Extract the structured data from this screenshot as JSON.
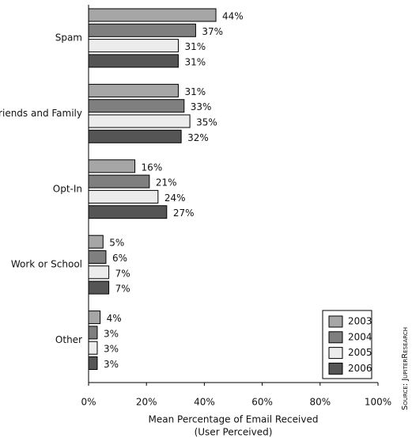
{
  "chart_data": {
    "type": "bar",
    "orientation": "horizontal",
    "categories": [
      "Spam",
      "Friends and Family",
      "Opt-In",
      "Work or School",
      "Other"
    ],
    "series": [
      {
        "name": "2003",
        "color": "#a6a6a6",
        "values": [
          44,
          31,
          16,
          5,
          4
        ],
        "value_labels": [
          "44%",
          "31%",
          "16%",
          "5%",
          "4%"
        ]
      },
      {
        "name": "2004",
        "color": "#7f7f7f",
        "values": [
          37,
          33,
          21,
          6,
          3
        ],
        "value_labels": [
          "37%",
          "33%",
          "21%",
          "6%",
          "3%"
        ]
      },
      {
        "name": "2005",
        "color": "#ececec",
        "values": [
          31,
          35,
          24,
          7,
          3
        ],
        "value_labels": [
          "31%",
          "35%",
          "24%",
          "7%",
          "3%"
        ]
      },
      {
        "name": "2006",
        "color": "#555555",
        "values": [
          31,
          32,
          27,
          7,
          3
        ],
        "value_labels": [
          "31%",
          "32%",
          "27%",
          "7%",
          "3%"
        ]
      }
    ],
    "xlim": [
      0,
      100
    ],
    "xticks": [
      {
        "value": 0,
        "label": "0%"
      },
      {
        "value": 20,
        "label": "20%"
      },
      {
        "value": 40,
        "label": "40%"
      },
      {
        "value": 60,
        "label": "60%"
      },
      {
        "value": 80,
        "label": "80%"
      },
      {
        "value": 100,
        "label": "100%"
      }
    ],
    "xlabel": [
      "Mean Percentage of Email Received",
      "(User Perceived)"
    ],
    "source": "Source: JupiterResearch",
    "legend": "bottom-right"
  }
}
